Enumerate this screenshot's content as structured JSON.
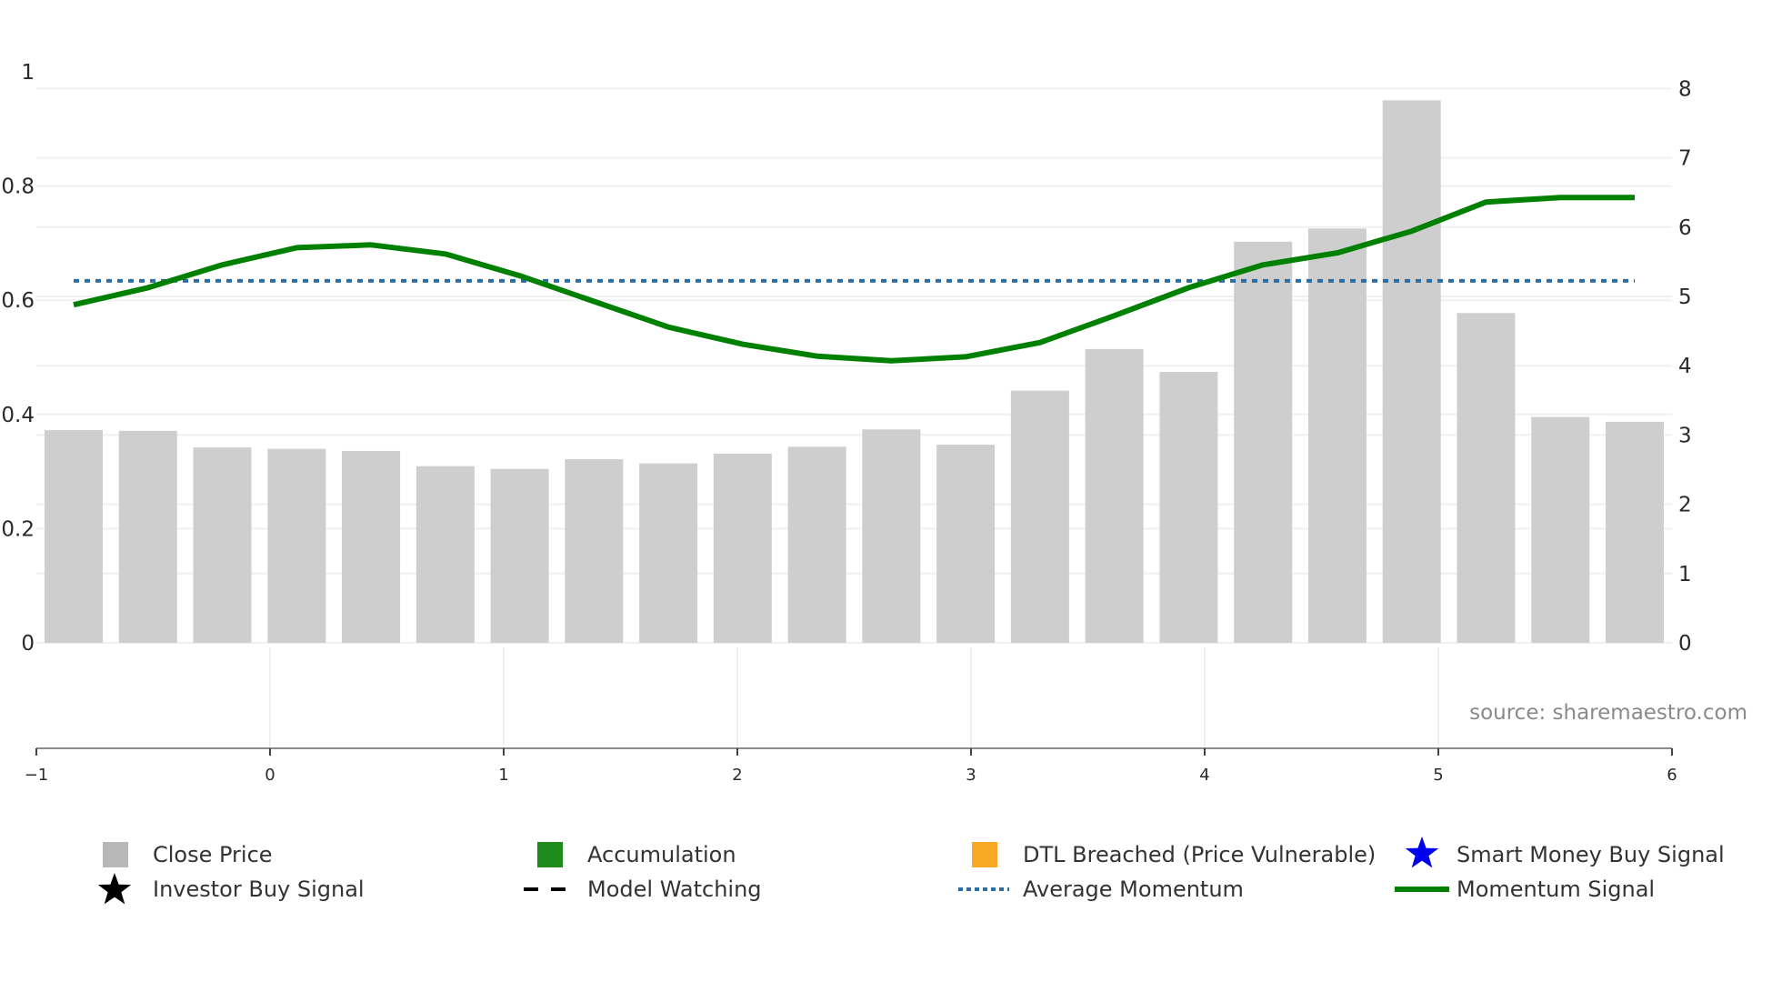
{
  "chart_data": {
    "type": "bar+line",
    "title": "",
    "xlabel": "",
    "ylabel_left": "",
    "ylabel_right": "",
    "x_axis": {
      "range": [
        -1,
        6
      ],
      "ticks": [
        -1,
        0,
        1,
        2,
        3,
        4,
        5,
        6
      ],
      "tick_labels": [
        "−1",
        "0",
        "1",
        "2",
        "3",
        "4",
        "5",
        "6"
      ]
    },
    "y_axis_left": {
      "range": [
        0,
        1
      ],
      "ticks": [
        0,
        0.2,
        0.4,
        0.6,
        0.8,
        1
      ],
      "tick_labels": [
        "0",
        "0.2",
        "0.4",
        "0.6",
        "0.8",
        "1"
      ]
    },
    "y_axis_right": {
      "range": [
        0,
        8
      ],
      "ticks": [
        0,
        1,
        2,
        3,
        4,
        5,
        6,
        7,
        8
      ],
      "tick_labels": [
        "0",
        "1",
        "2",
        "3",
        "4",
        "5",
        "6",
        "7",
        "8"
      ]
    },
    "grid": true,
    "legend_position": "bottom",
    "series": [
      {
        "name": "Close Price",
        "type": "bar",
        "axis": "right",
        "color": "#cbcbcb",
        "values": [
          3.07,
          3.06,
          2.82,
          2.8,
          2.77,
          2.55,
          2.51,
          2.65,
          2.59,
          2.73,
          2.83,
          3.08,
          2.86,
          3.64,
          4.24,
          3.91,
          5.79,
          5.98,
          7.83,
          4.76,
          3.26,
          3.19
        ]
      },
      {
        "name": "Momentum Signal",
        "type": "line",
        "axis": "left",
        "color": "#008000",
        "values": [
          0.592,
          0.622,
          0.662,
          0.692,
          0.697,
          0.681,
          0.643,
          0.598,
          0.553,
          0.523,
          0.502,
          0.494,
          0.501,
          0.526,
          0.573,
          0.622,
          0.662,
          0.683,
          0.721,
          0.772,
          0.78,
          0.78
        ]
      },
      {
        "name": "Average Momentum",
        "type": "line",
        "style": "dotted",
        "axis": "left",
        "color": "#2e6da4",
        "values": [
          0.634,
          0.634,
          0.634,
          0.634,
          0.634,
          0.634,
          0.634,
          0.634,
          0.634,
          0.634,
          0.634,
          0.634,
          0.634,
          0.634,
          0.634,
          0.634,
          0.634,
          0.634,
          0.634,
          0.634,
          0.634,
          0.634
        ]
      }
    ],
    "annotations": [
      "source: sharemaestro.com"
    ]
  },
  "watermark": "source: sharemaestro.com",
  "legend": {
    "items": [
      {
        "label": "Close Price",
        "symbol": "square",
        "color": "#b8b8b8"
      },
      {
        "label": "Accumulation",
        "symbol": "square",
        "color": "#1e8a1e"
      },
      {
        "label": "DTL Breached (Price Vulnerable)",
        "symbol": "square",
        "color": "#f9a825"
      },
      {
        "label": "Smart Money Buy Signal",
        "symbol": "star",
        "color": "#0000ee"
      },
      {
        "label": "Investor Buy Signal",
        "symbol": "star",
        "color": "#000000"
      },
      {
        "label": "Model Watching",
        "symbol": "dash",
        "color": "#000000"
      },
      {
        "label": "Average Momentum",
        "symbol": "dotted",
        "color": "#2e6da4"
      },
      {
        "label": "Momentum Signal",
        "symbol": "line",
        "color": "#008000"
      }
    ]
  },
  "colors": {
    "bar": "#cbcbcb",
    "momentum": "#008000",
    "average": "#2e6da4",
    "grid": "#eef0f4",
    "axis_line": "#8c8c8c",
    "watermark": "#8a8a8a"
  }
}
